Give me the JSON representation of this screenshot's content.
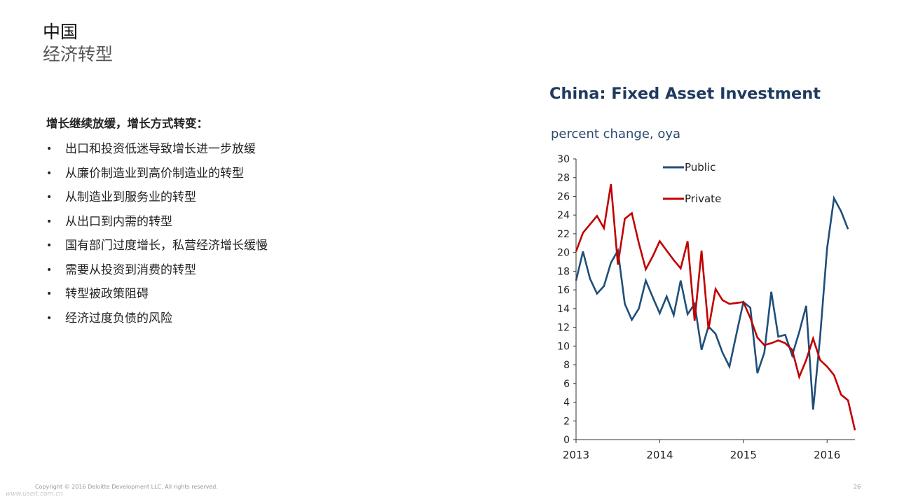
{
  "slide": {
    "title": "中国",
    "subtitle": "经济转型",
    "lead": "增长继续放缓，增长方式转变：",
    "bullets": [
      "出口和投资低迷导致增长进一步放缓",
      "从廉价制造业到高价制造业的转型",
      "从制造业到服务业的转型",
      "从出口到内需的转型",
      "国有部门过度增长，私营经济增长缓慢",
      "需要从投资到消费的转型",
      "转型被政策阻碍",
      "经济过度负债的风险"
    ],
    "bullet_glyph": "•"
  },
  "footer": {
    "copyright": "Copyright © 2016 Deloitte Development LLC. All rights reserved.",
    "page_number": "26",
    "watermark": "www.useit.com.cn"
  },
  "chart_data": {
    "type": "line",
    "title": "China: Fixed Asset Investment",
    "ylabel": "percent change, oya",
    "ylim": [
      0,
      30
    ],
    "xlim": [
      2013,
      2016.333
    ],
    "yticks": [
      "0",
      "2",
      "4",
      "6",
      "8",
      "10",
      "12",
      "14",
      "16",
      "18",
      "20",
      "22",
      "24",
      "26",
      "28",
      "30"
    ],
    "xticks": [
      "2013",
      "2014",
      "2015",
      "2016"
    ],
    "legend_position": "top-center",
    "grid": false,
    "series": [
      {
        "name": "Public",
        "color": "#1f4e79",
        "points": [
          [
            2013.0,
            17.0
          ],
          [
            2013.083,
            20.1
          ],
          [
            2013.167,
            17.2
          ],
          [
            2013.25,
            15.6
          ],
          [
            2013.333,
            16.4
          ],
          [
            2013.417,
            18.9
          ],
          [
            2013.5,
            20.2
          ],
          [
            2013.583,
            14.5
          ],
          [
            2013.667,
            12.8
          ],
          [
            2013.75,
            14.0
          ],
          [
            2013.833,
            17.0
          ],
          [
            2013.917,
            15.2
          ],
          [
            2014.0,
            13.5
          ],
          [
            2014.083,
            15.3
          ],
          [
            2014.167,
            13.3
          ],
          [
            2014.25,
            17.0
          ],
          [
            2014.333,
            13.4
          ],
          [
            2014.417,
            14.5
          ],
          [
            2014.5,
            9.6
          ],
          [
            2014.583,
            12.1
          ],
          [
            2014.667,
            11.3
          ],
          [
            2014.75,
            9.3
          ],
          [
            2014.833,
            7.8
          ],
          [
            2014.917,
            11.3
          ],
          [
            2015.0,
            14.7
          ],
          [
            2015.083,
            14.1
          ],
          [
            2015.167,
            7.1
          ],
          [
            2015.25,
            9.3
          ],
          [
            2015.333,
            15.8
          ],
          [
            2015.417,
            11.0
          ],
          [
            2015.5,
            11.2
          ],
          [
            2015.583,
            9.0
          ],
          [
            2015.667,
            11.5
          ],
          [
            2015.75,
            14.3
          ],
          [
            2015.833,
            3.2
          ],
          [
            2015.917,
            11.0
          ],
          [
            2016.0,
            20.4
          ],
          [
            2016.083,
            25.8
          ],
          [
            2016.167,
            24.4
          ],
          [
            2016.25,
            22.5
          ]
        ]
      },
      {
        "name": "Private",
        "color": "#c00000",
        "points": [
          [
            2013.0,
            20.1
          ],
          [
            2013.083,
            22.1
          ],
          [
            2013.167,
            23.0
          ],
          [
            2013.25,
            23.9
          ],
          [
            2013.333,
            22.6
          ],
          [
            2013.417,
            27.3
          ],
          [
            2013.5,
            18.7
          ],
          [
            2013.583,
            23.6
          ],
          [
            2013.667,
            24.2
          ],
          [
            2013.75,
            21.0
          ],
          [
            2013.833,
            18.2
          ],
          [
            2013.917,
            19.6
          ],
          [
            2014.0,
            21.2
          ],
          [
            2014.083,
            20.2
          ],
          [
            2014.167,
            19.2
          ],
          [
            2014.25,
            18.3
          ],
          [
            2014.333,
            21.2
          ],
          [
            2014.417,
            12.7
          ],
          [
            2014.5,
            20.2
          ],
          [
            2014.583,
            11.8
          ],
          [
            2014.667,
            16.1
          ],
          [
            2014.75,
            14.9
          ],
          [
            2014.833,
            14.5
          ],
          [
            2014.917,
            14.6
          ],
          [
            2015.0,
            14.7
          ],
          [
            2015.083,
            13.0
          ],
          [
            2015.167,
            10.9
          ],
          [
            2015.25,
            10.1
          ],
          [
            2015.333,
            10.3
          ],
          [
            2015.417,
            10.6
          ],
          [
            2015.5,
            10.3
          ],
          [
            2015.583,
            9.6
          ],
          [
            2015.667,
            6.7
          ],
          [
            2015.75,
            8.5
          ],
          [
            2015.833,
            10.8
          ],
          [
            2015.917,
            8.5
          ],
          [
            2016.0,
            7.8
          ],
          [
            2016.083,
            6.9
          ],
          [
            2016.167,
            4.8
          ],
          [
            2016.25,
            4.2
          ],
          [
            2016.333,
            1.0
          ]
        ]
      }
    ]
  }
}
